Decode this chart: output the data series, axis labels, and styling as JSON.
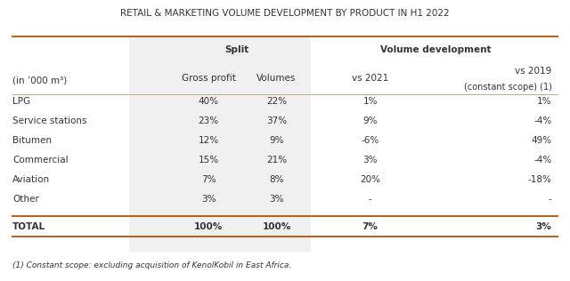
{
  "title": "RETAIL & MARKETING VOLUME DEVELOPMENT BY PRODUCT IN H1 2022",
  "col_headers_top": [
    "Split",
    "Volume development"
  ],
  "col_headers_sub": [
    "(in ’000 m³)",
    "Gross profit",
    "Volumes",
    "vs 2021",
    "vs 2019",
    "(constant scope) (1)"
  ],
  "rows": [
    [
      "LPG",
      "40%",
      "22%",
      "1%",
      "1%"
    ],
    [
      "Service stations",
      "23%",
      "37%",
      "9%",
      "-4%"
    ],
    [
      "Bitumen",
      "12%",
      "9%",
      "-6%",
      "49%"
    ],
    [
      "Commercial",
      "15%",
      "21%",
      "3%",
      "-4%"
    ],
    [
      "Aviation",
      "7%",
      "8%",
      "20%",
      "-18%"
    ],
    [
      "Other",
      "3%",
      "3%",
      "-",
      "-"
    ]
  ],
  "total_row": [
    "TOTAL",
    "100%",
    "100%",
    "7%",
    "3%"
  ],
  "footnote": "(1) Constant scope: excluding acquisition of KenolKobil in East Africa.",
  "bg_color": "#ffffff",
  "shaded_col_bg": "#f0f0f0",
  "header_line_color": "#b5651d",
  "separator_line_color": "#c8a882",
  "text_color": "#333333",
  "title_fontsize": 7.5,
  "header_fontsize": 7.5,
  "cell_fontsize": 7.5,
  "footnote_fontsize": 6.5
}
